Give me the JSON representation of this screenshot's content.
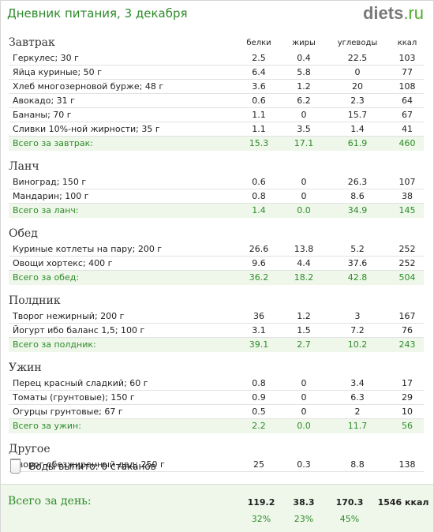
{
  "page": {
    "title": "Дневник питания, 3 декабря",
    "logo_bold": "diets",
    "logo_tld": ".ru"
  },
  "columns": [
    "белки",
    "жиры",
    "углеводы",
    "ккал"
  ],
  "meals": [
    {
      "name": "Завтрак",
      "items": [
        {
          "name": "Геркулес; 30 г",
          "protein": "2.5",
          "fat": "0.4",
          "carbs": "22.5",
          "kcal": "103"
        },
        {
          "name": "Яйца куриные; 50 г",
          "protein": "6.4",
          "fat": "5.8",
          "carbs": "0",
          "kcal": "77"
        },
        {
          "name": "Хлеб многозерновой бурже; 48 г",
          "protein": "3.6",
          "fat": "1.2",
          "carbs": "20",
          "kcal": "108"
        },
        {
          "name": "Авокадо; 31 г",
          "protein": "0.6",
          "fat": "6.2",
          "carbs": "2.3",
          "kcal": "64"
        },
        {
          "name": "Бананы; 70 г",
          "protein": "1.1",
          "fat": "0",
          "carbs": "15.7",
          "kcal": "67"
        },
        {
          "name": "Сливки 10%-ной жирности; 35 г",
          "protein": "1.1",
          "fat": "3.5",
          "carbs": "1.4",
          "kcal": "41"
        }
      ],
      "total": {
        "label": "Всего за завтрак:",
        "protein": "15.3",
        "fat": "17.1",
        "carbs": "61.9",
        "kcal": "460"
      }
    },
    {
      "name": "Ланч",
      "items": [
        {
          "name": "Виноград; 150 г",
          "protein": "0.6",
          "fat": "0",
          "carbs": "26.3",
          "kcal": "107"
        },
        {
          "name": "Мандарин; 100 г",
          "protein": "0.8",
          "fat": "0",
          "carbs": "8.6",
          "kcal": "38"
        }
      ],
      "total": {
        "label": "Всего за ланч:",
        "protein": "1.4",
        "fat": "0.0",
        "carbs": "34.9",
        "kcal": "145"
      }
    },
    {
      "name": "Обед",
      "items": [
        {
          "name": "Куриные котлеты на пару; 200 г",
          "protein": "26.6",
          "fat": "13.8",
          "carbs": "5.2",
          "kcal": "252"
        },
        {
          "name": "Овощи хортекс; 400 г",
          "protein": "9.6",
          "fat": "4.4",
          "carbs": "37.6",
          "kcal": "252"
        }
      ],
      "total": {
        "label": "Всего за обед:",
        "protein": "36.2",
        "fat": "18.2",
        "carbs": "42.8",
        "kcal": "504"
      }
    },
    {
      "name": "Полдник",
      "items": [
        {
          "name": "Творог нежирный; 200 г",
          "protein": "36",
          "fat": "1.2",
          "carbs": "3",
          "kcal": "167"
        },
        {
          "name": "Йогурт ибо баланс 1,5; 100 г",
          "protein": "3.1",
          "fat": "1.5",
          "carbs": "7.2",
          "kcal": "76"
        }
      ],
      "total": {
        "label": "Всего за полдник:",
        "protein": "39.1",
        "fat": "2.7",
        "carbs": "10.2",
        "kcal": "243"
      }
    },
    {
      "name": "Ужин",
      "items": [
        {
          "name": "Перец красный сладкий; 60 г",
          "protein": "0.8",
          "fat": "0",
          "carbs": "3.4",
          "kcal": "17"
        },
        {
          "name": "Томаты (грунтовые); 150 г",
          "protein": "0.9",
          "fat": "0",
          "carbs": "6.3",
          "kcal": "29"
        },
        {
          "name": "Огурцы грунтовые; 67 г",
          "protein": "0.5",
          "fat": "0",
          "carbs": "2",
          "kcal": "10"
        }
      ],
      "total": {
        "label": "Всего за ужин:",
        "protein": "2.2",
        "fat": "0.0",
        "carbs": "11.7",
        "kcal": "56"
      }
    },
    {
      "name": "Другое",
      "items": [
        {
          "name": "Творог обезжиренный двд; 250 г",
          "protein": "25",
          "fat": "0.3",
          "carbs": "8.8",
          "kcal": "138"
        }
      ],
      "total": null
    }
  ],
  "water": {
    "text": "Воды выпито: 0 стаканов",
    "icon": "water-glass-icon"
  },
  "day_total": {
    "label": "Всего за день:",
    "protein": "119.2",
    "fat": "38.3",
    "carbs": "170.3",
    "kcal": "1546 ккал",
    "protein_pct": "32%",
    "fat_pct": "23%",
    "carbs_pct": "45%"
  },
  "colors": {
    "accent": "#2e8b2a",
    "total_bg": "#eef7ea",
    "logo_gray": "#7a7a7a",
    "logo_green": "#4caf2a"
  }
}
